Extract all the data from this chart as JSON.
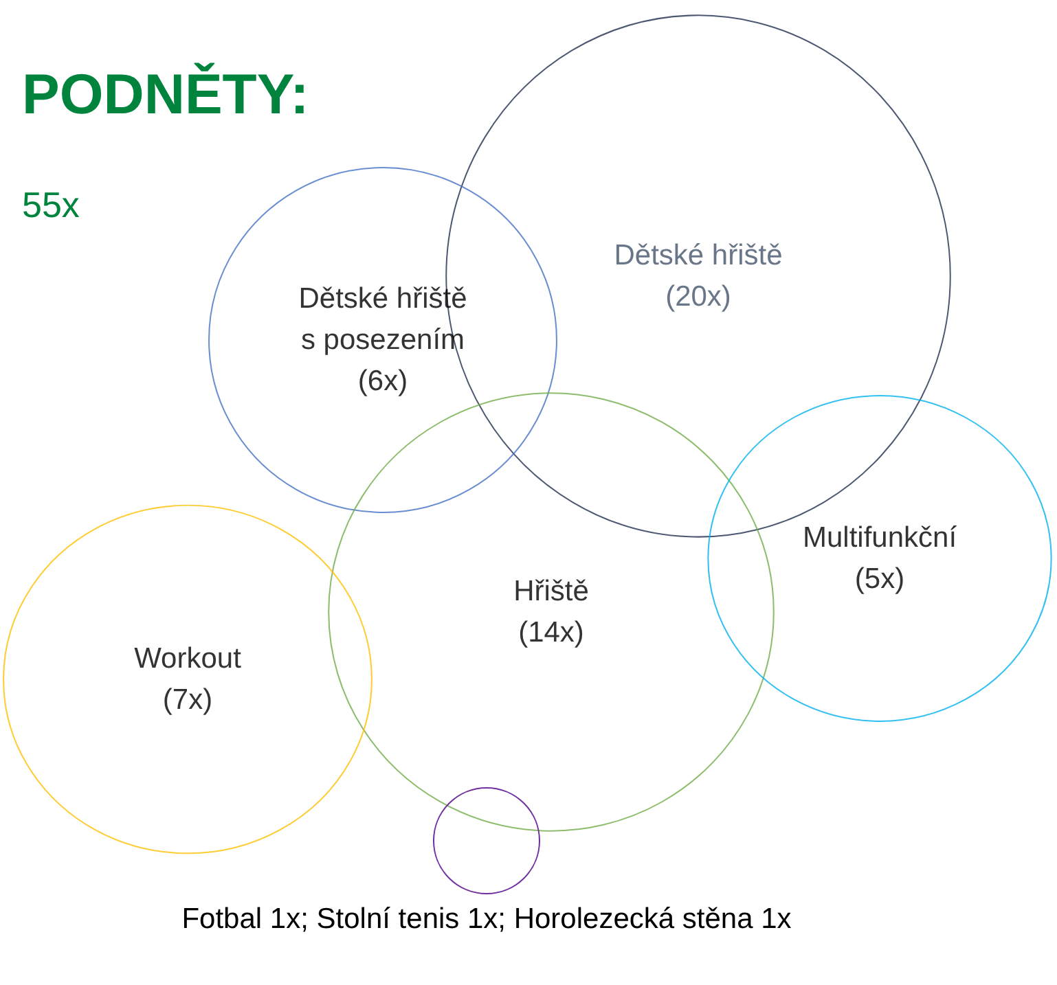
{
  "chart_data": {
    "type": "other",
    "title": "PODNĚTY:",
    "subtitle": "55x",
    "categories": [
      "Dětské hřiště",
      "Dětské hřiště s posezením",
      "Hřiště",
      "Workout",
      "Multifunkční"
    ],
    "values": [
      20,
      6,
      14,
      7,
      5
    ],
    "value_labels": [
      "(20x)",
      "(6x)",
      "(14x)",
      "(7x)",
      "(5x)"
    ],
    "colors": [
      "#1f2d4e",
      "#4472c4",
      "#70ad47",
      "#ffc000",
      "#00b0f0"
    ],
    "annotations": [
      "Fotbal 1x; Stolní tenis 1x; Horolezecká stěna 1x"
    ]
  }
}
